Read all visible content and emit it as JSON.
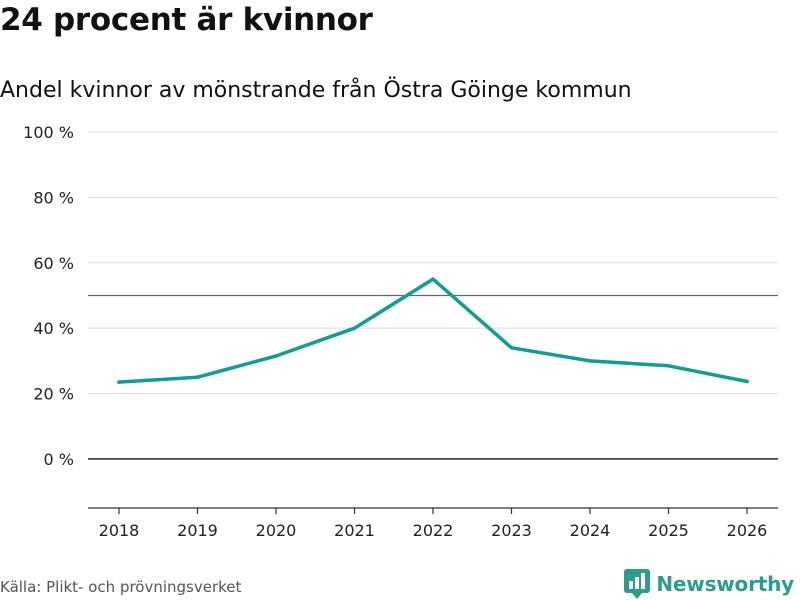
{
  "header": {
    "title": "24 procent är kvinnor",
    "subtitle": "Andel kvinnor av mönstrande från Östra Göinge kommun"
  },
  "footer": {
    "source": "Källa: Plikt- och prövningsverket",
    "brand": "Newsworthy",
    "brand_icon": "newsworthy-logo-icon"
  },
  "colors": {
    "line": "#0f9e94",
    "grid": "#dddddd",
    "zero_line": "#333333",
    "reference_line": "#666666",
    "axis": "#333333"
  },
  "chart_data": {
    "type": "line",
    "title": "Andel kvinnor av mönstrande från Östra Göinge kommun",
    "xlabel": "",
    "ylabel": "",
    "x": [
      "2018",
      "2019",
      "2020",
      "2021",
      "2022",
      "2023",
      "2024",
      "2025",
      "2026"
    ],
    "series": [
      {
        "name": "Andel kvinnor",
        "values": [
          23.5,
          25,
          31.5,
          40,
          55,
          34,
          30,
          28.5,
          23.7
        ]
      }
    ],
    "yticks": [
      0,
      20,
      40,
      60,
      80,
      100
    ],
    "ytick_labels": [
      "0 %",
      "20 %",
      "40 %",
      "60 %",
      "80 %",
      "100 %"
    ],
    "ylim": [
      -15,
      100
    ],
    "reference_line": 50,
    "grid": true
  }
}
